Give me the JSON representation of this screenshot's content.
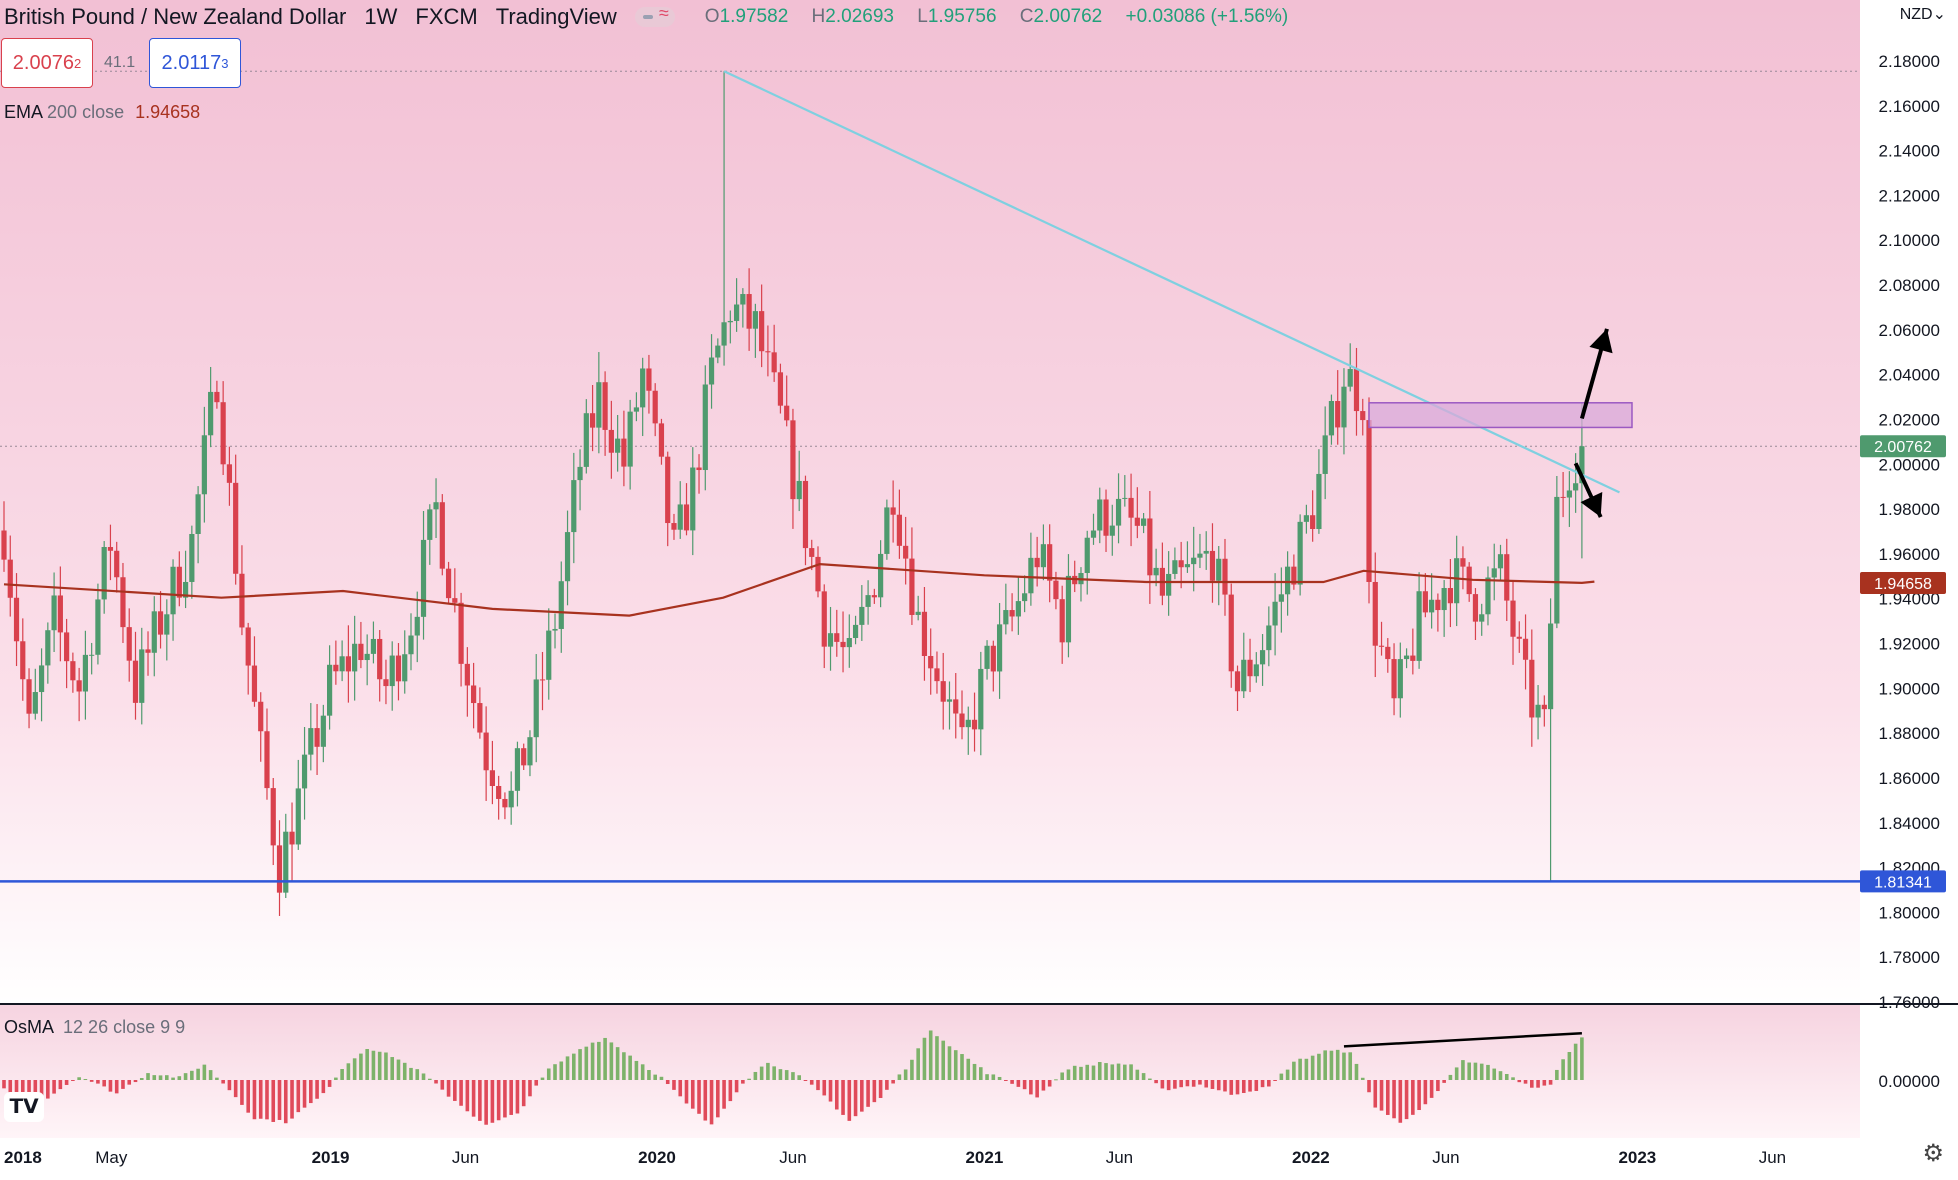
{
  "header": {
    "symbol": "British Pound / New Zealand Dollar",
    "interval": "1W",
    "exchange": "FXCM",
    "source": "TradingView",
    "open_label": "O",
    "open": "1.97582",
    "high_label": "H",
    "high": "2.02693",
    "low_label": "L",
    "low": "1.95756",
    "close_label": "C",
    "close": "2.00762",
    "change": "+0.03086 (+1.56%)"
  },
  "trade": {
    "sell": "2.0076",
    "sell_sup": "2",
    "spread": "41.1",
    "buy": "2.0117",
    "buy_sup": "3"
  },
  "currency": "NZD",
  "legends": {
    "ema_name": "EMA",
    "ema_params": "200 close",
    "ema_value": "1.94658",
    "osma_name": "OsMA",
    "osma_params": "12 26 close 9 9"
  },
  "colors": {
    "up": "#4f9a6e",
    "down": "#d9414d",
    "ema": "#a8321f",
    "trendline": "#7fd0e0",
    "support": "#2f56d8",
    "zone_fill": "#d9a9d9",
    "zone_border": "#9b59c2",
    "hist_up": "#7db26a",
    "hist_down": "#e04a5a",
    "bg_top": "#f2c0d4",
    "bg_bottom": "#ffffff"
  },
  "chart_data": [
    {
      "type": "candlestick",
      "title": "British Pound / New Zealand Dollar",
      "interval": "1W",
      "ylim": [
        1.76,
        2.18
      ],
      "ytick_labels": [
        "2.18000",
        "2.16000",
        "2.14000",
        "2.12000",
        "2.10000",
        "2.08000",
        "2.06000",
        "2.04000",
        "2.02000",
        "2.00000",
        "1.98000",
        "1.96000",
        "1.94000",
        "1.92000",
        "1.90000",
        "1.88000",
        "1.86000",
        "1.84000",
        "1.82000",
        "1.80000",
        "1.78000",
        "1.76000"
      ],
      "x_tick_labels": [
        "2018",
        "May",
        "2019",
        "Jun",
        "2020",
        "Jun",
        "2021",
        "Jun",
        "2022",
        "Jun",
        "2023",
        "Jun"
      ],
      "price_labels": {
        "last": "2.00762",
        "ema": "1.94658",
        "support": "1.81341"
      },
      "levels": {
        "last": 2.00762,
        "ema": 1.94658,
        "support": 1.81341,
        "peak": 2.175
      },
      "anchors": [
        [
          "2018-01-01",
          1.97
        ],
        [
          "2018-01-29",
          1.88
        ],
        [
          "2018-02-26",
          1.93
        ],
        [
          "2018-03-26",
          1.9
        ],
        [
          "2018-04-30",
          1.965
        ],
        [
          "2018-05-28",
          1.9
        ],
        [
          "2018-06-25",
          1.93
        ],
        [
          "2018-07-30",
          1.965
        ],
        [
          "2018-08-27",
          2.04
        ],
        [
          "2018-09-24",
          1.93
        ],
        [
          "2018-10-15",
          1.87
        ],
        [
          "2018-11-05",
          1.82
        ],
        [
          "2018-12-03",
          1.86
        ],
        [
          "2018-12-31",
          1.9
        ],
        [
          "2019-02-04",
          1.92
        ],
        [
          "2019-03-04",
          1.9
        ],
        [
          "2019-04-01",
          1.93
        ],
        [
          "2019-04-29",
          1.98
        ],
        [
          "2019-05-27",
          1.92
        ],
        [
          "2019-06-24",
          1.87
        ],
        [
          "2019-07-22",
          1.85
        ],
        [
          "2019-08-12",
          1.88
        ],
        [
          "2019-09-09",
          1.93
        ],
        [
          "2019-10-07",
          2.0
        ],
        [
          "2019-10-28",
          2.03
        ],
        [
          "2019-11-25",
          2.0
        ],
        [
          "2019-12-16",
          2.04
        ],
        [
          "2020-01-20",
          1.96
        ],
        [
          "2020-02-10",
          1.99
        ],
        [
          "2020-03-02",
          2.04
        ],
        [
          "2020-03-23",
          2.07
        ],
        [
          "2020-04-20",
          2.06
        ],
        [
          "2020-05-18",
          2.02
        ],
        [
          "2020-06-15",
          1.97
        ],
        [
          "2020-07-06",
          1.93
        ],
        [
          "2020-08-03",
          1.91
        ],
        [
          "2020-08-31",
          1.95
        ],
        [
          "2020-09-21",
          1.99
        ],
        [
          "2020-10-19",
          1.93
        ],
        [
          "2020-11-16",
          1.9
        ],
        [
          "2020-12-07",
          1.87
        ],
        [
          "2021-01-04",
          1.91
        ],
        [
          "2021-02-01",
          1.93
        ],
        [
          "2021-03-01",
          1.96
        ],
        [
          "2021-03-29",
          1.93
        ],
        [
          "2021-04-26",
          1.97
        ],
        [
          "2021-05-24",
          1.98
        ],
        [
          "2021-06-21",
          1.97
        ],
        [
          "2021-07-19",
          1.94
        ],
        [
          "2021-08-16",
          1.95
        ],
        [
          "2021-09-13",
          1.96
        ],
        [
          "2021-10-11",
          1.9
        ],
        [
          "2021-11-08",
          1.92
        ],
        [
          "2021-12-06",
          1.95
        ],
        [
          "2022-01-03",
          1.98
        ],
        [
          "2022-02-07",
          2.04
        ],
        [
          "2022-02-28",
          2.03
        ],
        [
          "2022-03-07",
          1.94
        ],
        [
          "2022-04-04",
          1.89
        ],
        [
          "2022-05-02",
          1.93
        ],
        [
          "2022-06-06",
          1.95
        ],
        [
          "2022-07-04",
          1.94
        ],
        [
          "2022-08-01",
          1.95
        ],
        [
          "2022-08-29",
          1.9
        ],
        [
          "2022-09-19",
          1.88
        ],
        [
          "2022-10-03",
          1.98
        ],
        [
          "2022-10-17",
          2.0
        ],
        [
          "2022-10-31",
          2.0076
        ]
      ],
      "ema_series": [
        [
          "2018-01-01",
          1.946
        ],
        [
          "2018-09-01",
          1.94
        ],
        [
          "2019-01-15",
          1.943
        ],
        [
          "2019-07-01",
          1.935
        ],
        [
          "2019-12-01",
          1.932
        ],
        [
          "2020-03-15",
          1.94
        ],
        [
          "2020-07-01",
          1.955
        ],
        [
          "2021-01-01",
          1.95
        ],
        [
          "2021-07-01",
          1.947
        ],
        [
          "2022-01-15",
          1.947
        ],
        [
          "2022-03-01",
          1.952
        ],
        [
          "2022-07-01",
          1.948
        ],
        [
          "2022-10-31",
          1.9466
        ],
        [
          "2022-11-14",
          1.9472
        ]
      ],
      "annotations": [
        {
          "type": "trendline",
          "from": [
            "2020-03-16",
            2.175
          ],
          "to": [
            "2022-12-12",
            1.987
          ]
        },
        {
          "type": "horizontal",
          "price": 1.81341
        },
        {
          "type": "zone",
          "from": "2022-03-07",
          "to": "2022-12-26",
          "low": 2.016,
          "high": 2.027
        },
        {
          "type": "arrow",
          "direction": "up",
          "from": [
            "2022-10-31",
            2.02
          ],
          "to": [
            "2022-11-28",
            2.06
          ]
        },
        {
          "type": "arrow",
          "direction": "down",
          "from": [
            "2022-10-24",
            2.0
          ],
          "to": [
            "2022-11-21",
            1.976
          ]
        }
      ]
    },
    {
      "type": "histogram",
      "title": "OsMA 12 26 close 9 9",
      "ytick_labels": [
        "0.00000"
      ],
      "anchors": [
        [
          "2018-01-01",
          -0.8
        ],
        [
          "2018-02-12",
          -1.8
        ],
        [
          "2018-03-26",
          0.35
        ],
        [
          "2018-05-07",
          -1.1
        ],
        [
          "2018-06-11",
          0.6
        ],
        [
          "2018-07-16",
          0.2
        ],
        [
          "2018-08-13",
          1.3
        ],
        [
          "2018-09-10",
          -0.8
        ],
        [
          "2018-10-08",
          -3.2
        ],
        [
          "2018-11-12",
          -3.5
        ],
        [
          "2018-12-24",
          -1.2
        ],
        [
          "2019-01-14",
          1.0
        ],
        [
          "2019-02-11",
          2.7
        ],
        [
          "2019-03-11",
          2.0
        ],
        [
          "2019-04-15",
          0.5
        ],
        [
          "2019-05-13",
          -1.3
        ],
        [
          "2019-06-24",
          -3.8
        ],
        [
          "2019-07-29",
          -2.8
        ],
        [
          "2019-09-02",
          0.9
        ],
        [
          "2019-10-14",
          2.9
        ],
        [
          "2019-11-04",
          3.5
        ],
        [
          "2019-11-25",
          2.4
        ],
        [
          "2020-01-06",
          0.2
        ],
        [
          "2020-02-03",
          -2.0
        ],
        [
          "2020-03-02",
          -3.8
        ],
        [
          "2020-04-06",
          -0.2
        ],
        [
          "2020-05-04",
          1.5
        ],
        [
          "2020-06-08",
          0.3
        ],
        [
          "2020-07-06",
          -1.3
        ],
        [
          "2020-08-03",
          -3.4
        ],
        [
          "2020-09-07",
          -1.5
        ],
        [
          "2020-10-05",
          1.0
        ],
        [
          "2020-11-02",
          4.2
        ],
        [
          "2020-11-30",
          2.5
        ],
        [
          "2021-01-04",
          0.6
        ],
        [
          "2021-02-08",
          -0.5
        ],
        [
          "2021-03-01",
          -1.4
        ],
        [
          "2021-04-05",
          1.0
        ],
        [
          "2021-05-10",
          1.4
        ],
        [
          "2021-06-14",
          1.3
        ],
        [
          "2021-07-19",
          -0.8
        ],
        [
          "2021-08-30",
          -0.4
        ],
        [
          "2021-10-04",
          -1.2
        ],
        [
          "2021-11-15",
          -0.6
        ],
        [
          "2021-12-13",
          1.5
        ],
        [
          "2022-01-17",
          2.4
        ],
        [
          "2022-02-14",
          2.4
        ],
        [
          "2022-03-14",
          -2.2
        ],
        [
          "2022-04-11",
          -3.6
        ],
        [
          "2022-05-16",
          -1.6
        ],
        [
          "2022-06-20",
          1.6
        ],
        [
          "2022-07-18",
          1.2
        ],
        [
          "2022-08-15",
          0.2
        ],
        [
          "2022-09-05",
          -0.7
        ],
        [
          "2022-09-26",
          -0.3
        ],
        [
          "2022-10-10",
          1.8
        ],
        [
          "2022-10-31",
          3.5
        ]
      ],
      "annotations": [
        {
          "type": "trendline",
          "from": [
            "2022-02-07",
            2.8
          ],
          "to": [
            "2022-10-31",
            3.9
          ]
        }
      ]
    }
  ]
}
